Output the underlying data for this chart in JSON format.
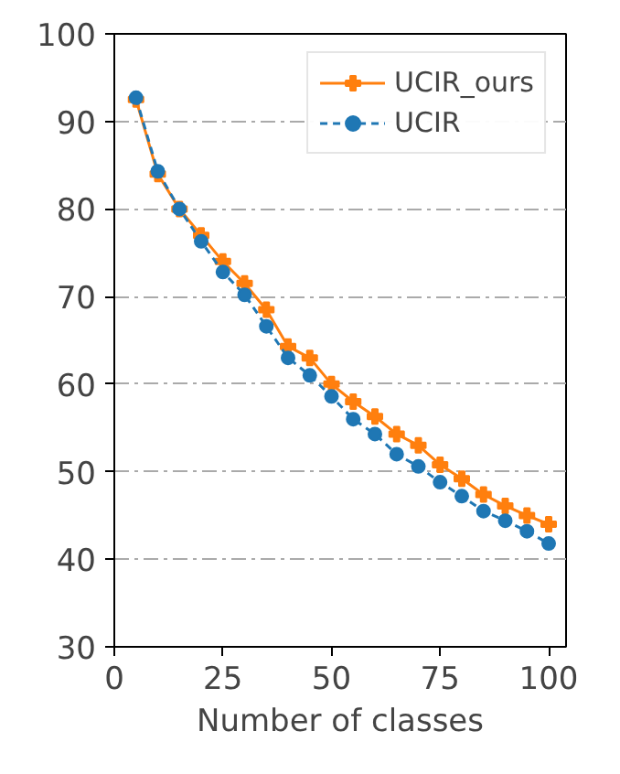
{
  "chart_data": {
    "type": "line",
    "xlabel": "Number of classes",
    "x": [
      5,
      10,
      15,
      20,
      25,
      30,
      35,
      40,
      45,
      50,
      55,
      60,
      65,
      70,
      75,
      80,
      85,
      90,
      95,
      100
    ],
    "series": [
      {
        "name": "UCIR_ours",
        "color": "#ff7f0e",
        "marker": "cross",
        "line_style": "solid",
        "values": [
          92.5,
          84,
          80,
          77,
          74,
          71.5,
          68.5,
          64.3,
          63,
          60,
          58,
          56.3,
          54.3,
          53,
          50.8,
          49.2,
          47.4,
          46.1,
          45,
          44
        ]
      },
      {
        "name": "UCIR",
        "color": "#1f77b4",
        "marker": "circle",
        "line_style": "dashed",
        "values": [
          92.7,
          84.3,
          80,
          76.3,
          72.8,
          70.2,
          66.6,
          63,
          61,
          58.6,
          56,
          54.3,
          52,
          50.6,
          48.8,
          47.2,
          45.5,
          44.4,
          43.2,
          41.8
        ]
      }
    ],
    "xlim": [
      0,
      104
    ],
    "ylim": [
      30,
      100
    ],
    "xticks": [
      0,
      25,
      50,
      75,
      100
    ],
    "yticks": [
      30,
      40,
      50,
      60,
      70,
      80,
      90,
      100
    ],
    "grid": "y",
    "legend": "top right"
  }
}
